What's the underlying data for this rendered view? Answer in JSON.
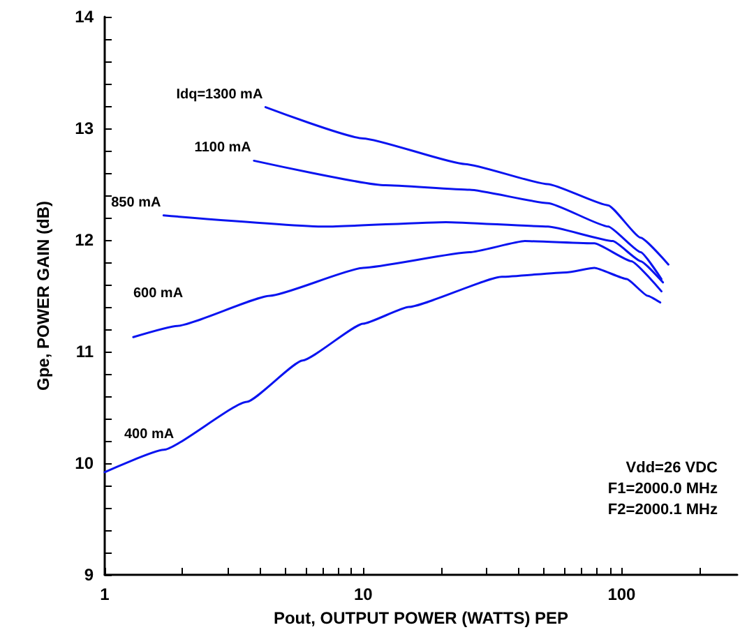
{
  "chart_data": {
    "type": "line",
    "xlabel": "Pout, OUTPUT POWER (WATTS) PEP",
    "ylabel": "Gpe, POWER GAIN (dB)",
    "log": "x",
    "grid": false,
    "legend": false,
    "marker": "none",
    "line_style": "solid",
    "xlim": [
      1,
      280
    ],
    "ylim": [
      9,
      14
    ],
    "xticks": [
      1,
      {
        "value": 2,
        "label": null
      },
      {
        "value": 3,
        "label": null
      },
      {
        "value": 4,
        "label": null
      },
      {
        "value": 5,
        "label": null
      },
      {
        "value": 6,
        "label": null
      },
      {
        "value": 7,
        "label": null
      },
      {
        "value": 8,
        "label": null
      },
      {
        "value": 9,
        "label": null
      },
      10,
      {
        "value": 20,
        "label": null
      },
      {
        "value": 30,
        "label": null
      },
      {
        "value": 40,
        "label": null
      },
      {
        "value": 50,
        "label": null
      },
      {
        "value": 60,
        "label": null
      },
      {
        "value": 70,
        "label": null
      },
      {
        "value": 80,
        "label": null
      },
      {
        "value": 90,
        "label": null
      },
      100,
      {
        "value": 200,
        "label": null
      }
    ],
    "yticks": [
      9,
      {
        "value": 9.2,
        "label": null
      },
      {
        "value": 9.4,
        "label": null
      },
      {
        "value": 9.6,
        "label": null
      },
      {
        "value": 9.8,
        "label": null
      },
      10,
      {
        "value": 10.2,
        "label": null
      },
      {
        "value": 10.4,
        "label": null
      },
      {
        "value": 10.6,
        "label": null
      },
      {
        "value": 10.8,
        "label": null
      },
      11,
      {
        "value": 11.2,
        "label": null
      },
      {
        "value": 11.4,
        "label": null
      },
      {
        "value": 11.6,
        "label": null
      },
      {
        "value": 11.8,
        "label": null
      },
      12,
      {
        "value": 12.2,
        "label": null
      },
      {
        "value": 12.4,
        "label": null
      },
      {
        "value": 12.6,
        "label": null
      },
      {
        "value": 12.8,
        "label": null
      },
      13,
      {
        "value": 13.2,
        "label": null
      },
      {
        "value": 13.4,
        "label": null
      },
      {
        "value": 13.6,
        "label": null
      },
      {
        "value": 13.8,
        "label": null
      },
      14
    ],
    "annotations": [
      "Vdd=26 VDC",
      "F1=2000.0 MHz",
      "F2=2000.1 MHz"
    ],
    "series": [
      {
        "name": "Idq=1300 mA",
        "color": "#0a14f0",
        "x": [
          4.19,
          10,
          24.8,
          51.9,
          88.8,
          118.5,
          151.7
        ],
        "values": [
          13.19,
          12.91,
          12.68,
          12.5,
          12.31,
          12.02,
          11.78
        ]
      },
      {
        "name": "1100 mA",
        "color": "#0a14f0",
        "x": [
          3.78,
          12.2,
          25.8,
          51.9,
          88.8,
          118.5,
          142.6
        ],
        "values": [
          12.71,
          12.49,
          12.45,
          12.33,
          12.12,
          11.89,
          11.65
        ]
      },
      {
        "name": "850 mA",
        "color": "#0a14f0",
        "x": [
          1.69,
          7.16,
          20.9,
          51.9,
          92.5,
          118.5,
          144.5
        ],
        "values": [
          12.22,
          12.12,
          12.16,
          12.12,
          11.99,
          11.81,
          11.62
        ]
      },
      {
        "name": "600 mA",
        "color": "#0a14f0",
        "x": [
          1.29,
          1.91,
          4.36,
          10,
          25.8,
          42.2,
          78.5,
          109,
          142.6
        ],
        "values": [
          11.13,
          11.23,
          11.5,
          11.75,
          11.89,
          11.99,
          11.97,
          11.81,
          11.54
        ]
      },
      {
        "name": "400 mA",
        "color": "#0a14f0",
        "x": [
          1,
          1.69,
          3.55,
          5.83,
          10,
          15,
          34.4,
          61.2,
          78.5,
          104.7,
          126,
          141
        ],
        "values": [
          9.92,
          10.12,
          10.55,
          10.92,
          11.25,
          11.4,
          11.67,
          11.71,
          11.75,
          11.65,
          11.5,
          11.44
        ]
      }
    ]
  }
}
